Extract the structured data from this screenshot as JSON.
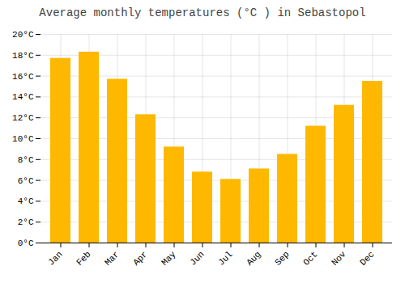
{
  "chart_data": {
    "type": "bar",
    "title": "Average monthly temperatures (°C ) in Sebastopol",
    "categories": [
      "Jan",
      "Feb",
      "Mar",
      "Apr",
      "May",
      "Jun",
      "Jul",
      "Aug",
      "Sep",
      "Oct",
      "Nov",
      "Dec"
    ],
    "values": [
      17.7,
      18.3,
      15.7,
      12.3,
      9.2,
      6.8,
      6.1,
      7.1,
      8.5,
      11.2,
      13.2,
      15.5
    ],
    "color": "#FFB800",
    "ylim": [
      0,
      20
    ],
    "yticks": [
      {
        "value": 0,
        "label": "0°C"
      },
      {
        "value": 2,
        "label": "2°C"
      },
      {
        "value": 4,
        "label": "4°C"
      },
      {
        "value": 6,
        "label": "6°C"
      },
      {
        "value": 8,
        "label": "8°C"
      },
      {
        "value": 10,
        "label": "10°C"
      },
      {
        "value": 12,
        "label": "12°C"
      },
      {
        "value": 14,
        "label": "14°C"
      },
      {
        "value": 16,
        "label": "16°C"
      },
      {
        "value": 18,
        "label": "18°C"
      },
      {
        "value": 20,
        "label": "20°C"
      }
    ],
    "grid": true
  }
}
